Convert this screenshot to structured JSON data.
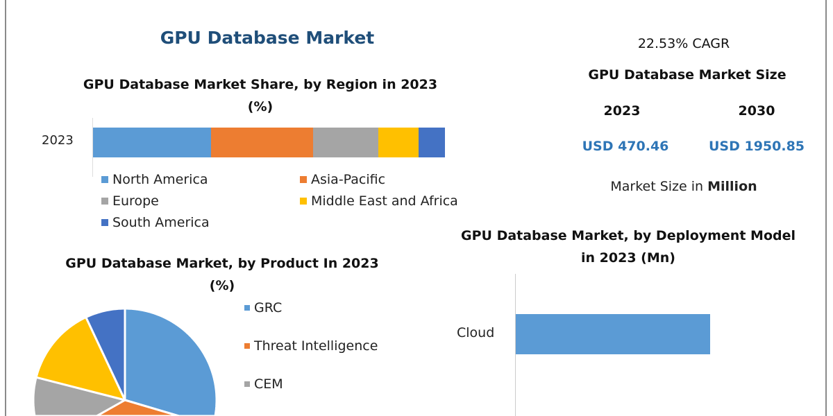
{
  "title": "GPU Database Market",
  "market_size": {
    "cagr": "22.53% CAGR",
    "heading": "GPU Database Market Size",
    "year_start": "2023",
    "year_end": "2030",
    "value_start": "USD 470.46",
    "value_end": "USD 1950.85",
    "unit_prefix": "Market Size in ",
    "unit_bold": "Million",
    "value_color": "#2e75b6"
  },
  "chart_data": [
    {
      "type": "bar",
      "orientation": "horizontal",
      "stacked": true,
      "title": "GPU Database Market Share, by Region in 2023 (%)",
      "categories": [
        "2023"
      ],
      "series": [
        {
          "name": "North America",
          "values": [
            33.5
          ],
          "color": "#5b9bd5"
        },
        {
          "name": "Asia-Pacific",
          "values": [
            29
          ],
          "color": "#ed7d31"
        },
        {
          "name": "Europe",
          "values": [
            18.5
          ],
          "color": "#a5a5a5"
        },
        {
          "name": "Middle East and Africa",
          "values": [
            11.5
          ],
          "color": "#ffc000"
        },
        {
          "name": "South America",
          "values": [
            7.5
          ],
          "color": "#4472c4"
        }
      ],
      "legend": "bottom"
    },
    {
      "type": "pie",
      "title": "GPU Database Market, by Product In 2023 (%)",
      "slices": [
        {
          "name": "GRC",
          "value": 40,
          "color": "#5b9bd5"
        },
        {
          "name": "Threat Intelligence",
          "value": 15,
          "color": "#ed7d31"
        },
        {
          "name": "CEM",
          "value": 24,
          "color": "#a5a5a5"
        },
        {
          "name": "",
          "value": 14,
          "color": "#ffc000"
        },
        {
          "name": "",
          "value": 7,
          "color": "#4472c4"
        }
      ],
      "legend": "right"
    },
    {
      "type": "bar",
      "orientation": "horizontal",
      "title": "GPU Database Market, by Deployment Model in 2023 (Mn)",
      "categories": [
        "Cloud"
      ],
      "color": "#5b9bd5"
    }
  ]
}
